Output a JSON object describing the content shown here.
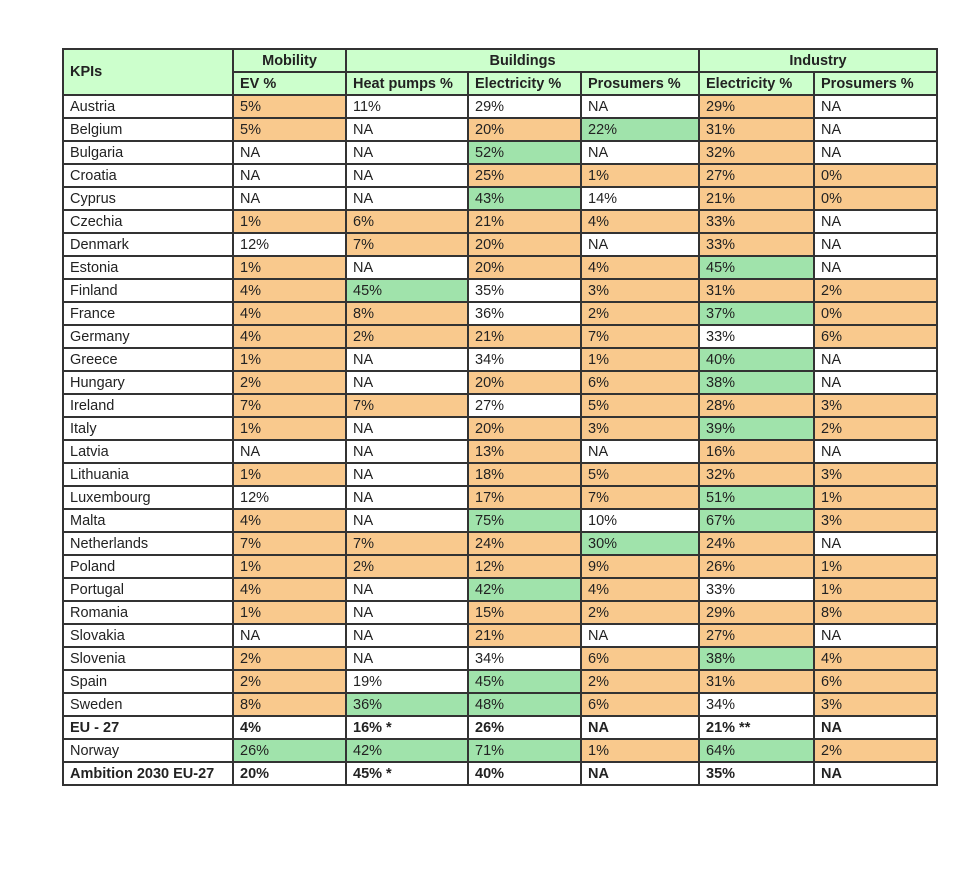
{
  "table": {
    "corner_label": "KPIs",
    "groups": [
      {
        "label": "Mobility",
        "span": 1
      },
      {
        "label": "Buildings",
        "span": 3
      },
      {
        "label": "Industry",
        "span": 2
      }
    ],
    "columns": [
      "EV %",
      "Heat pumps %",
      "Electricity %",
      "Prosumers %",
      "Electricity %",
      "Prosumers %"
    ],
    "legend_colors": {
      "below": "#f9c98d",
      "above": "#a0e3ab",
      "neutral": "#ffffff",
      "header": "#ccffcc"
    },
    "rows": [
      {
        "label": "Austria",
        "bold": false,
        "cells": [
          [
            "5%",
            "o"
          ],
          [
            "11%",
            "w"
          ],
          [
            "29%",
            "w"
          ],
          [
            "NA",
            "w"
          ],
          [
            "29%",
            "o"
          ],
          [
            "NA",
            "w"
          ]
        ]
      },
      {
        "label": "Belgium",
        "bold": false,
        "cells": [
          [
            "5%",
            "o"
          ],
          [
            "NA",
            "w"
          ],
          [
            "20%",
            "o"
          ],
          [
            "22%",
            "g"
          ],
          [
            "31%",
            "o"
          ],
          [
            "NA",
            "w"
          ]
        ]
      },
      {
        "label": "Bulgaria",
        "bold": false,
        "cells": [
          [
            "NA",
            "w"
          ],
          [
            "NA",
            "w"
          ],
          [
            "52%",
            "g"
          ],
          [
            "NA",
            "w"
          ],
          [
            "32%",
            "o"
          ],
          [
            "NA",
            "w"
          ]
        ]
      },
      {
        "label": "Croatia",
        "bold": false,
        "cells": [
          [
            "NA",
            "w"
          ],
          [
            "NA",
            "w"
          ],
          [
            "25%",
            "o"
          ],
          [
            "1%",
            "o"
          ],
          [
            "27%",
            "o"
          ],
          [
            "0%",
            "o"
          ]
        ]
      },
      {
        "label": "Cyprus",
        "bold": false,
        "cells": [
          [
            "NA",
            "w"
          ],
          [
            "NA",
            "w"
          ],
          [
            "43%",
            "g"
          ],
          [
            "14%",
            "w"
          ],
          [
            "21%",
            "o"
          ],
          [
            "0%",
            "o"
          ]
        ]
      },
      {
        "label": "Czechia",
        "bold": false,
        "cells": [
          [
            "1%",
            "o"
          ],
          [
            "6%",
            "o"
          ],
          [
            "21%",
            "o"
          ],
          [
            "4%",
            "o"
          ],
          [
            "33%",
            "o"
          ],
          [
            "NA",
            "w"
          ]
        ]
      },
      {
        "label": "Denmark",
        "bold": false,
        "cells": [
          [
            "12%",
            "w"
          ],
          [
            "7%",
            "o"
          ],
          [
            "20%",
            "o"
          ],
          [
            "NA",
            "w"
          ],
          [
            "33%",
            "o"
          ],
          [
            "NA",
            "w"
          ]
        ]
      },
      {
        "label": "Estonia",
        "bold": false,
        "cells": [
          [
            "1%",
            "o"
          ],
          [
            "NA",
            "w"
          ],
          [
            "20%",
            "o"
          ],
          [
            "4%",
            "o"
          ],
          [
            "45%",
            "g"
          ],
          [
            "NA",
            "w"
          ]
        ]
      },
      {
        "label": "Finland",
        "bold": false,
        "cells": [
          [
            "4%",
            "o"
          ],
          [
            "45%",
            "g"
          ],
          [
            "35%",
            "w"
          ],
          [
            "3%",
            "o"
          ],
          [
            "31%",
            "o"
          ],
          [
            "2%",
            "o"
          ]
        ]
      },
      {
        "label": "France",
        "bold": false,
        "cells": [
          [
            "4%",
            "o"
          ],
          [
            "8%",
            "o"
          ],
          [
            "36%",
            "w"
          ],
          [
            "2%",
            "o"
          ],
          [
            "37%",
            "g"
          ],
          [
            "0%",
            "o"
          ]
        ]
      },
      {
        "label": "Germany",
        "bold": false,
        "cells": [
          [
            "4%",
            "o"
          ],
          [
            "2%",
            "o"
          ],
          [
            "21%",
            "o"
          ],
          [
            "7%",
            "o"
          ],
          [
            "33%",
            "w"
          ],
          [
            "6%",
            "o"
          ]
        ]
      },
      {
        "label": "Greece",
        "bold": false,
        "cells": [
          [
            "1%",
            "o"
          ],
          [
            "NA",
            "w"
          ],
          [
            "34%",
            "w"
          ],
          [
            "1%",
            "o"
          ],
          [
            "40%",
            "g"
          ],
          [
            "NA",
            "w"
          ]
        ]
      },
      {
        "label": "Hungary",
        "bold": false,
        "cells": [
          [
            "2%",
            "o"
          ],
          [
            "NA",
            "w"
          ],
          [
            "20%",
            "o"
          ],
          [
            "6%",
            "o"
          ],
          [
            "38%",
            "g"
          ],
          [
            "NA",
            "w"
          ]
        ]
      },
      {
        "label": "Ireland",
        "bold": false,
        "cells": [
          [
            "7%",
            "o"
          ],
          [
            "7%",
            "o"
          ],
          [
            "27%",
            "w"
          ],
          [
            "5%",
            "o"
          ],
          [
            "28%",
            "o"
          ],
          [
            "3%",
            "o"
          ]
        ]
      },
      {
        "label": "Italy",
        "bold": false,
        "cells": [
          [
            "1%",
            "o"
          ],
          [
            "NA",
            "w"
          ],
          [
            "20%",
            "o"
          ],
          [
            "3%",
            "o"
          ],
          [
            "39%",
            "g"
          ],
          [
            "2%",
            "o"
          ]
        ]
      },
      {
        "label": "Latvia",
        "bold": false,
        "cells": [
          [
            "NA",
            "w"
          ],
          [
            "NA",
            "w"
          ],
          [
            "13%",
            "o"
          ],
          [
            "NA",
            "w"
          ],
          [
            "16%",
            "o"
          ],
          [
            "NA",
            "w"
          ]
        ]
      },
      {
        "label": "Lithuania",
        "bold": false,
        "cells": [
          [
            "1%",
            "o"
          ],
          [
            "NA",
            "w"
          ],
          [
            "18%",
            "o"
          ],
          [
            "5%",
            "o"
          ],
          [
            "32%",
            "o"
          ],
          [
            "3%",
            "o"
          ]
        ]
      },
      {
        "label": "Luxembourg",
        "bold": false,
        "cells": [
          [
            "12%",
            "w"
          ],
          [
            "NA",
            "w"
          ],
          [
            "17%",
            "o"
          ],
          [
            "7%",
            "o"
          ],
          [
            "51%",
            "g"
          ],
          [
            "1%",
            "o"
          ]
        ]
      },
      {
        "label": "Malta",
        "bold": false,
        "cells": [
          [
            "4%",
            "o"
          ],
          [
            "NA",
            "w"
          ],
          [
            "75%",
            "g"
          ],
          [
            "10%",
            "w"
          ],
          [
            "67%",
            "g"
          ],
          [
            "3%",
            "o"
          ]
        ]
      },
      {
        "label": "Netherlands",
        "bold": false,
        "cells": [
          [
            "7%",
            "o"
          ],
          [
            "7%",
            "o"
          ],
          [
            "24%",
            "o"
          ],
          [
            "30%",
            "g"
          ],
          [
            "24%",
            "o"
          ],
          [
            "NA",
            "w"
          ]
        ]
      },
      {
        "label": "Poland",
        "bold": false,
        "cells": [
          [
            "1%",
            "o"
          ],
          [
            "2%",
            "o"
          ],
          [
            "12%",
            "o"
          ],
          [
            "9%",
            "o"
          ],
          [
            "26%",
            "o"
          ],
          [
            "1%",
            "o"
          ]
        ]
      },
      {
        "label": "Portugal",
        "bold": false,
        "cells": [
          [
            "4%",
            "o"
          ],
          [
            "NA",
            "w"
          ],
          [
            "42%",
            "g"
          ],
          [
            "4%",
            "o"
          ],
          [
            "33%",
            "w"
          ],
          [
            "1%",
            "o"
          ]
        ]
      },
      {
        "label": "Romania",
        "bold": false,
        "cells": [
          [
            "1%",
            "o"
          ],
          [
            "NA",
            "w"
          ],
          [
            "15%",
            "o"
          ],
          [
            "2%",
            "o"
          ],
          [
            "29%",
            "o"
          ],
          [
            "8%",
            "o"
          ]
        ]
      },
      {
        "label": "Slovakia",
        "bold": false,
        "cells": [
          [
            "NA",
            "w"
          ],
          [
            "NA",
            "w"
          ],
          [
            "21%",
            "o"
          ],
          [
            "NA",
            "w"
          ],
          [
            "27%",
            "o"
          ],
          [
            "NA",
            "w"
          ]
        ]
      },
      {
        "label": "Slovenia",
        "bold": false,
        "cells": [
          [
            "2%",
            "o"
          ],
          [
            "NA",
            "w"
          ],
          [
            "34%",
            "w"
          ],
          [
            "6%",
            "o"
          ],
          [
            "38%",
            "g"
          ],
          [
            "4%",
            "o"
          ]
        ]
      },
      {
        "label": "Spain",
        "bold": false,
        "cells": [
          [
            "2%",
            "o"
          ],
          [
            "19%",
            "w"
          ],
          [
            "45%",
            "g"
          ],
          [
            "2%",
            "o"
          ],
          [
            "31%",
            "o"
          ],
          [
            "6%",
            "o"
          ]
        ]
      },
      {
        "label": "Sweden",
        "bold": false,
        "cells": [
          [
            "8%",
            "o"
          ],
          [
            "36%",
            "g"
          ],
          [
            "48%",
            "g"
          ],
          [
            "6%",
            "o"
          ],
          [
            "34%",
            "w"
          ],
          [
            "3%",
            "o"
          ]
        ]
      },
      {
        "label": "EU - 27",
        "bold": true,
        "cells": [
          [
            "4%",
            "w"
          ],
          [
            "16% *",
            "w"
          ],
          [
            "26%",
            "w"
          ],
          [
            "NA",
            "w"
          ],
          [
            "21% **",
            "w"
          ],
          [
            "NA",
            "w"
          ]
        ]
      },
      {
        "label": "Norway",
        "bold": false,
        "cells": [
          [
            "26%",
            "g"
          ],
          [
            "42%",
            "g"
          ],
          [
            "71%",
            "g"
          ],
          [
            "1%",
            "o"
          ],
          [
            "64%",
            "g"
          ],
          [
            "2%",
            "o"
          ]
        ]
      },
      {
        "label": "Ambition 2030 EU-27",
        "bold": true,
        "cells": [
          [
            "20%",
            "w"
          ],
          [
            "45% *",
            "w"
          ],
          [
            "40%",
            "w"
          ],
          [
            "NA",
            "w"
          ],
          [
            "35%",
            "w"
          ],
          [
            "NA",
            "w"
          ]
        ]
      }
    ]
  }
}
